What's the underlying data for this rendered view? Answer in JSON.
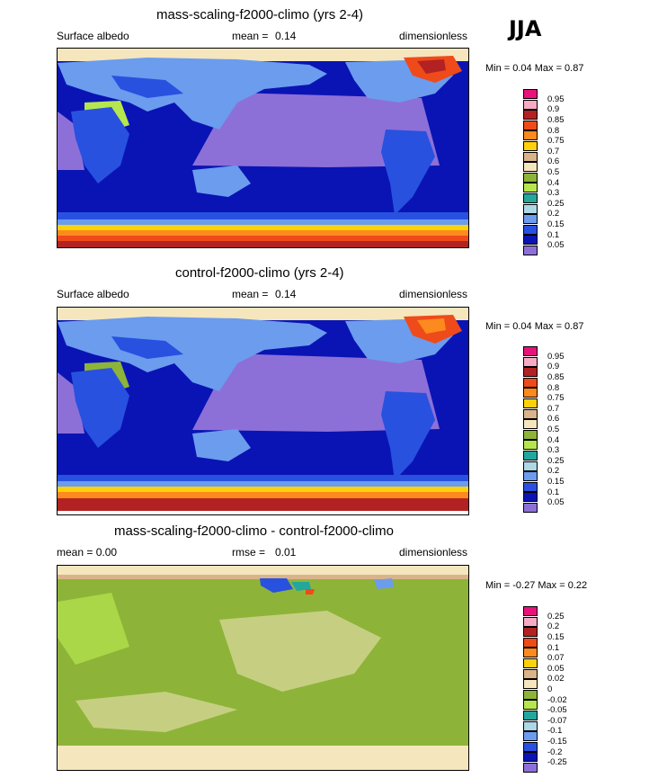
{
  "season": "JJA",
  "panels": [
    {
      "title": "mass-scaling-f2000-climo (yrs 2-4)",
      "left_label": "Surface albedo",
      "stat1_label": "mean =",
      "stat1_value": "0.14",
      "right_label": "dimensionless",
      "min_max": "Min =   0.04 Max =   0.87",
      "legend": [
        "0.95",
        "0.9",
        "0.85",
        "0.8",
        "0.75",
        "0.7",
        "0.6",
        "0.5",
        "0.4",
        "0.3",
        "0.25",
        "0.2",
        "0.15",
        "0.1",
        "0.05"
      ],
      "colors": [
        "#e8127a",
        "#f7aac4",
        "#b22222",
        "#ef4a1a",
        "#fc8a1e",
        "#fdd20a",
        "#d9b48a",
        "#f5e6be",
        "#8db438",
        "#b6e64e",
        "#23a79d",
        "#add8e6",
        "#6b9cee",
        "#2851e0",
        "#0a14b4",
        "#8c70d8"
      ]
    },
    {
      "title": "control-f2000-climo (yrs 2-4)",
      "left_label": "Surface albedo",
      "stat1_label": "mean =",
      "stat1_value": "0.14",
      "right_label": "dimensionless",
      "min_max": "Min =   0.04 Max =   0.87",
      "legend": [
        "0.95",
        "0.9",
        "0.85",
        "0.8",
        "0.75",
        "0.7",
        "0.6",
        "0.5",
        "0.4",
        "0.3",
        "0.25",
        "0.2",
        "0.15",
        "0.1",
        "0.05"
      ],
      "colors": [
        "#e8127a",
        "#f7aac4",
        "#b22222",
        "#ef4a1a",
        "#fc8a1e",
        "#fdd20a",
        "#d9b48a",
        "#f5e6be",
        "#8db438",
        "#b6e64e",
        "#23a79d",
        "#add8e6",
        "#6b9cee",
        "#2851e0",
        "#0a14b4",
        "#8c70d8"
      ]
    },
    {
      "title": "mass-scaling-f2000-climo - control-f2000-climo",
      "left_label": "mean =   0.00",
      "stat1_label": "rmse =",
      "stat1_value": "0.01",
      "right_label": "dimensionless",
      "min_max": "Min =  -0.27 Max =   0.22",
      "legend": [
        "0.25",
        "0.2",
        "0.15",
        "0.1",
        "0.07",
        "0.05",
        "0.02",
        "0",
        "-0.02",
        "-0.05",
        "-0.07",
        "-0.1",
        "-0.15",
        "-0.2",
        "-0.25"
      ],
      "colors": [
        "#e8127a",
        "#f7aac4",
        "#b22222",
        "#ef4a1a",
        "#fc8a1e",
        "#fdd20a",
        "#d9b48a",
        "#f5e6be",
        "#8db438",
        "#b6e64e",
        "#23a79d",
        "#add8e6",
        "#6b9cee",
        "#2851e0",
        "#0a14b4",
        "#8c70d8"
      ]
    }
  ]
}
